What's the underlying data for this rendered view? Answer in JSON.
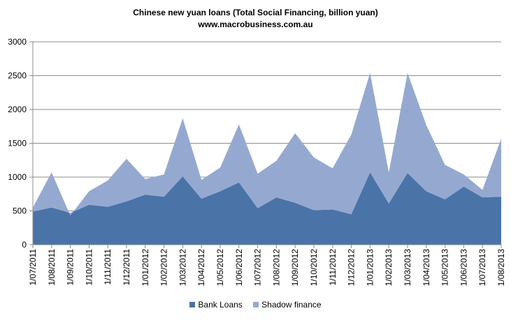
{
  "chart_data": {
    "type": "area",
    "stacked": true,
    "title": "Chinese new yuan loans  (Total Social  Financing,  billion yuan)",
    "subtitle": "www.macrobusiness.com.au",
    "xlabel": "",
    "ylabel": "",
    "ylim": [
      0,
      3000
    ],
    "yticks": [
      0,
      500,
      1000,
      1500,
      2000,
      2500,
      3000
    ],
    "grid": true,
    "legend_position": "bottom",
    "categories": [
      "1/07/2011",
      "1/08/2011",
      "1/09/2011",
      "1/10/2011",
      "1/11/2011",
      "1/12/2011",
      "1/01/2012",
      "1/02/2012",
      "1/03/2012",
      "1/04/2012",
      "1/05/2012",
      "1/06/2012",
      "1/07/2012",
      "1/08/2012",
      "1/09/2012",
      "1/10/2012",
      "1/11/2012",
      "1/12/2012",
      "1/01/2013",
      "1/02/2013",
      "1/03/2013",
      "1/04/2013",
      "1/05/2013",
      "1/06/2013",
      "1/07/2013",
      "1/08/2013"
    ],
    "series": [
      {
        "name": "Bank Loans",
        "color": "#4A73A8",
        "values": [
          490,
          550,
          470,
          590,
          560,
          640,
          740,
          710,
          1010,
          680,
          790,
          920,
          540,
          700,
          620,
          510,
          520,
          450,
          1070,
          610,
          1060,
          790,
          670,
          860,
          700,
          710
        ]
      },
      {
        "name": "Shadow finance",
        "color": "#95A9D0",
        "values": [
          60,
          520,
          -40,
          200,
          390,
          630,
          230,
          330,
          860,
          280,
          350,
          860,
          510,
          540,
          1030,
          780,
          610,
          1180,
          1470,
          460,
          1480,
          980,
          510,
          180,
          110,
          860
        ]
      }
    ]
  }
}
